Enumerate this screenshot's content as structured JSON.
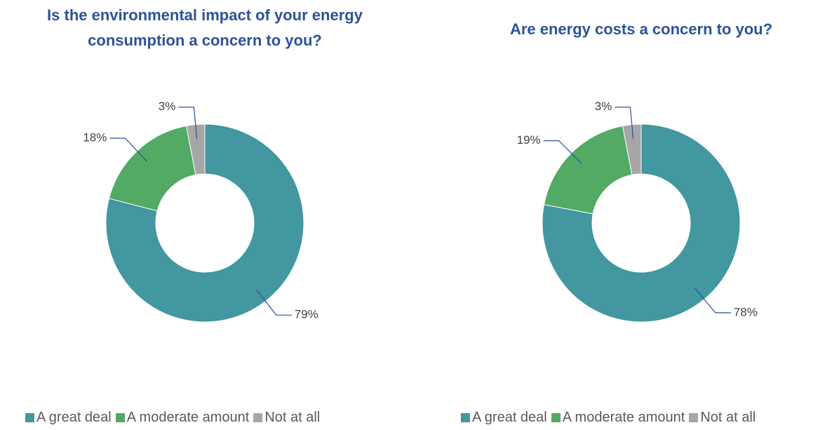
{
  "chart_data": [
    {
      "type": "pie",
      "title": "Is the environmental impact of your energy consumption a concern to you?",
      "categories": [
        "A great deal",
        "A moderate amount",
        "Not at all"
      ],
      "values": [
        79,
        18,
        3
      ],
      "value_labels": [
        "79%",
        "18%",
        "3%"
      ],
      "colors": [
        "#4297a0",
        "#52aa64",
        "#a6a6a6"
      ],
      "donut": true,
      "legend": "bottom"
    },
    {
      "type": "pie",
      "title": "Are energy costs a concern to you?",
      "categories": [
        "A great deal",
        "A moderate amount",
        "Not at all"
      ],
      "values": [
        78,
        19,
        3
      ],
      "value_labels": [
        "78%",
        "19%",
        "3%"
      ],
      "colors": [
        "#4297a0",
        "#52aa64",
        "#a6a6a6"
      ],
      "donut": true,
      "legend": "bottom"
    }
  ]
}
